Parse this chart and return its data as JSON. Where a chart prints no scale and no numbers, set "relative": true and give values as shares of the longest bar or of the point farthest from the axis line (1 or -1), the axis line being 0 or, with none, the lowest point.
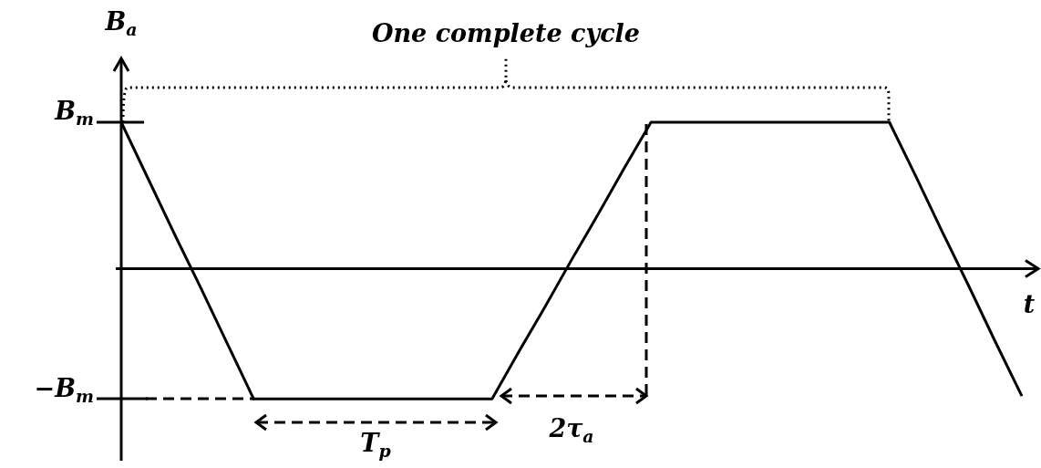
{
  "chart_data": {
    "type": "line",
    "title": "One complete cycle",
    "xlabel": "t",
    "ylabel": "B$_{a}$",
    "relative": true,
    "line_style": "solid",
    "categories": [
      null,
      null,
      null,
      null,
      null,
      null,
      null,
      null,
      null,
      null,
      null,
      null,
      null,
      null,
      null,
      null,
      null,
      null,
      null,
      null,
      null,
      null,
      null,
      null,
      null,
      null,
      null,
      null,
      null,
      null,
      null,
      null,
      null,
      null,
      null
    ],
    "series": [
      {
        "color": "#000000",
        "values": [
          1,
          0.62,
          0.24,
          -0.13,
          -0.51,
          -0.89,
          -0.89,
          -0.89,
          -0.89,
          -0.89,
          -0.89,
          -0.89,
          -0.89,
          -0.89,
          -0.89,
          -0.57,
          -0.26,
          0.06,
          0.37,
          0.69,
          1,
          1,
          1,
          1,
          1,
          1,
          1,
          1,
          1,
          1,
          0.63,
          0.25,
          -0.12,
          -0.5,
          -0.87
        ]
      }
    ],
    "annotations": [
      "B$_{m}$",
      "−B$_{m}$",
      "T$_{p}$",
      "2τ$_{a}$"
    ]
  }
}
